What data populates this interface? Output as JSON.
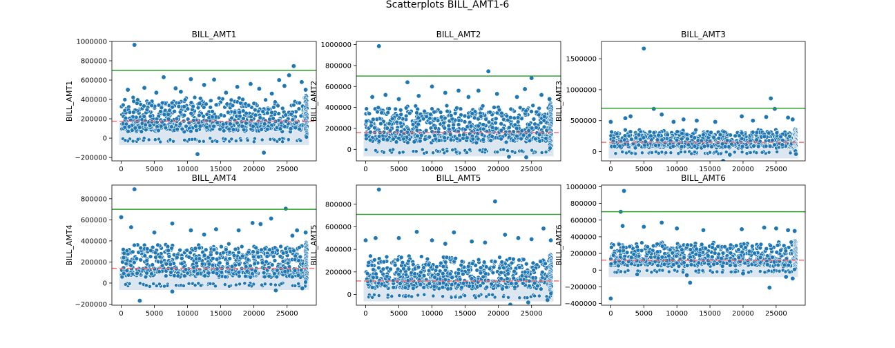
{
  "figure": {
    "suptitle": "Scatterplots BILL_AMT1-6",
    "colors": {
      "point": "#1f77b4",
      "point_edge": "#ffffff",
      "band": "#dbe6f1",
      "upper_line": "#2ca02c",
      "mean_line": "#ff6b6b",
      "frame": "#000000"
    }
  },
  "chart_data": [
    {
      "type": "scatter",
      "title": "BILL_AMT1",
      "ylabel": "BILL_AMT1",
      "xlim": [
        -1400,
        29400
      ],
      "ylim": [
        -235000,
        1000000
      ],
      "xticks": [
        0,
        5000,
        10000,
        15000,
        20000,
        25000
      ],
      "yticks": [
        -200000,
        0,
        200000,
        400000,
        600000,
        800000,
        1000000
      ],
      "hlines": [
        {
          "y": 700000,
          "style": "solid",
          "color": "upper"
        },
        {
          "y": 175000,
          "style": "dashed",
          "color": "mean"
        }
      ],
      "band": [
        0,
        160000
      ],
      "cloud_top": 400000,
      "tail_x": 28000,
      "points": [
        [
          2000,
          964000
        ],
        [
          26000,
          745000
        ],
        [
          11500,
          -165000
        ],
        [
          21500,
          -150000
        ],
        [
          6400,
          630000
        ],
        [
          10500,
          610000
        ],
        [
          14000,
          605000
        ],
        [
          23800,
          600000
        ],
        [
          25300,
          650000
        ],
        [
          27200,
          580000
        ],
        [
          19500,
          560000
        ],
        [
          12500,
          550000
        ],
        [
          3500,
          520000
        ],
        [
          8200,
          515000
        ],
        [
          17500,
          530000
        ],
        [
          24600,
          540000
        ],
        [
          1000,
          500000
        ],
        [
          9000,
          480000
        ],
        [
          20800,
          510000
        ],
        [
          27800,
          500000
        ],
        [
          15800,
          470000
        ],
        [
          5300,
          470000
        ],
        [
          22700,
          460000
        ]
      ]
    },
    {
      "type": "scatter",
      "title": "BILL_AMT2",
      "ylabel": "BILL_AMT2",
      "xlim": [
        -1400,
        29400
      ],
      "ylim": [
        -110000,
        1030000
      ],
      "xticks": [
        0,
        5000,
        10000,
        15000,
        20000,
        25000
      ],
      "yticks": [
        0,
        200000,
        400000,
        600000,
        800000,
        1000000
      ],
      "hlines": [
        {
          "y": 700000,
          "style": "solid",
          "color": "upper"
        },
        {
          "y": 160000,
          "style": "dashed",
          "color": "mean"
        }
      ],
      "band": [
        0,
        150000
      ],
      "cloud_top": 400000,
      "tail_x": 28000,
      "points": [
        [
          2000,
          985000
        ],
        [
          18500,
          745000
        ],
        [
          25000,
          680000
        ],
        [
          6300,
          640000
        ],
        [
          10000,
          600000
        ],
        [
          14000,
          560000
        ],
        [
          24000,
          575000
        ],
        [
          21600,
          -70000
        ],
        [
          24200,
          -75000
        ],
        [
          17000,
          560000
        ],
        [
          3000,
          520000
        ],
        [
          8000,
          510000
        ],
        [
          12000,
          540000
        ],
        [
          19800,
          530000
        ],
        [
          26500,
          520000
        ],
        [
          27700,
          480000
        ],
        [
          1000,
          500000
        ],
        [
          5000,
          480000
        ],
        [
          15500,
          500000
        ],
        [
          22800,
          500000
        ]
      ]
    },
    {
      "type": "scatter",
      "title": "BILL_AMT3",
      "ylabel": "BILL_AMT3",
      "xlim": [
        -1400,
        29400
      ],
      "ylim": [
        -150000,
        1780000
      ],
      "xticks": [
        0,
        5000,
        10000,
        15000,
        20000,
        25000
      ],
      "yticks": [
        0,
        500000,
        1000000,
        1500000
      ],
      "hlines": [
        {
          "y": 700000,
          "style": "solid",
          "color": "upper"
        },
        {
          "y": 150000,
          "style": "dashed",
          "color": "mean"
        }
      ],
      "band": [
        0,
        140000
      ],
      "cloud_top": 330000,
      "tail_x": 28000,
      "points": [
        [
          5000,
          1665000
        ],
        [
          24200,
          860000
        ],
        [
          24800,
          690000
        ],
        [
          6500,
          690000
        ],
        [
          7700,
          600000
        ],
        [
          17000,
          -150000
        ],
        [
          3000,
          570000
        ],
        [
          2200,
          540000
        ],
        [
          11000,
          520000
        ],
        [
          19800,
          570000
        ],
        [
          23500,
          560000
        ],
        [
          26800,
          550000
        ],
        [
          27500,
          520000
        ],
        [
          13000,
          500000
        ],
        [
          15800,
          480000
        ],
        [
          9500,
          480000
        ],
        [
          21500,
          500000
        ],
        [
          0,
          480000
        ],
        [
          18000,
          -50000
        ],
        [
          28000,
          -40000
        ]
      ]
    },
    {
      "type": "scatter",
      "title": "BILL_AMT4",
      "ylabel": "BILL_AMT4",
      "xlim": [
        -1400,
        29400
      ],
      "ylim": [
        -210000,
        930000
      ],
      "xticks": [
        0,
        5000,
        10000,
        15000,
        20000,
        25000
      ],
      "yticks": [
        -200000,
        0,
        200000,
        400000,
        600000,
        800000
      ],
      "hlines": [
        {
          "y": 700000,
          "style": "solid",
          "color": "upper"
        },
        {
          "y": 140000,
          "style": "dashed",
          "color": "mean"
        }
      ],
      "band": [
        0,
        130000
      ],
      "cloud_top": 350000,
      "tail_x": 28000,
      "points": [
        [
          2000,
          890000
        ],
        [
          24800,
          706000
        ],
        [
          0,
          625000
        ],
        [
          22600,
          612000
        ],
        [
          7700,
          565000
        ],
        [
          19800,
          570000
        ],
        [
          21000,
          560000
        ],
        [
          2800,
          -168000
        ],
        [
          7700,
          -80000
        ],
        [
          23300,
          -70000
        ],
        [
          27300,
          -50000
        ],
        [
          1500,
          530000
        ],
        [
          10500,
          500000
        ],
        [
          14300,
          510000
        ],
        [
          17700,
          500000
        ],
        [
          26500,
          500000
        ],
        [
          27800,
          480000
        ],
        [
          5000,
          480000
        ],
        [
          12500,
          460000
        ],
        [
          25800,
          450000
        ]
      ]
    },
    {
      "type": "scatter",
      "title": "BILL_AMT5",
      "ylabel": "BILL_AMT5",
      "xlim": [
        -1400,
        29400
      ],
      "ylim": [
        -95000,
        970000
      ],
      "xticks": [
        0,
        5000,
        10000,
        15000,
        20000,
        25000
      ],
      "yticks": [
        0,
        200000,
        400000,
        600000,
        800000
      ],
      "hlines": [
        {
          "y": 710000,
          "style": "solid",
          "color": "upper"
        },
        {
          "y": 120000,
          "style": "dashed",
          "color": "mean"
        }
      ],
      "band": [
        0,
        120000
      ],
      "cloud_top": 320000,
      "tail_x": 28000,
      "points": [
        [
          2000,
          930000
        ],
        [
          19500,
          825000
        ],
        [
          26800,
          585000
        ],
        [
          7700,
          555000
        ],
        [
          13300,
          550000
        ],
        [
          1500,
          500000
        ],
        [
          5000,
          500000
        ],
        [
          10000,
          480000
        ],
        [
          16000,
          470000
        ],
        [
          21000,
          530000
        ],
        [
          23000,
          500000
        ],
        [
          25000,
          490000
        ],
        [
          27900,
          480000
        ],
        [
          21800,
          -90000
        ],
        [
          24500,
          -70000
        ],
        [
          27400,
          -50000
        ],
        [
          0,
          480000
        ],
        [
          12000,
          450000
        ],
        [
          18000,
          460000
        ]
      ]
    },
    {
      "type": "scatter",
      "title": "BILL_AMT6",
      "ylabel": "BILL_AMT6",
      "xlim": [
        -1400,
        29400
      ],
      "ylim": [
        -420000,
        1020000
      ],
      "xticks": [
        0,
        5000,
        10000,
        15000,
        20000,
        25000
      ],
      "yticks": [
        -400000,
        -200000,
        0,
        200000,
        400000,
        600000,
        800000,
        1000000
      ],
      "hlines": [
        {
          "y": 700000,
          "style": "solid",
          "color": "upper"
        },
        {
          "y": 120000,
          "style": "dashed",
          "color": "mean"
        }
      ],
      "band": [
        0,
        110000
      ],
      "cloud_top": 320000,
      "tail_x": 28000,
      "points": [
        [
          2000,
          950000
        ],
        [
          1500,
          700000
        ],
        [
          0,
          -340000
        ],
        [
          7700,
          570000
        ],
        [
          24000,
          -210000
        ],
        [
          12000,
          -150000
        ],
        [
          1800,
          530000
        ],
        [
          5000,
          520000
        ],
        [
          10000,
          500000
        ],
        [
          14000,
          480000
        ],
        [
          19800,
          490000
        ],
        [
          23200,
          510000
        ],
        [
          25000,
          500000
        ],
        [
          26800,
          480000
        ],
        [
          27800,
          470000
        ],
        [
          11500,
          -60000
        ],
        [
          26500,
          -80000
        ],
        [
          27500,
          -100000
        ],
        [
          20000,
          -40000
        ],
        [
          4000,
          -50000
        ]
      ]
    }
  ]
}
